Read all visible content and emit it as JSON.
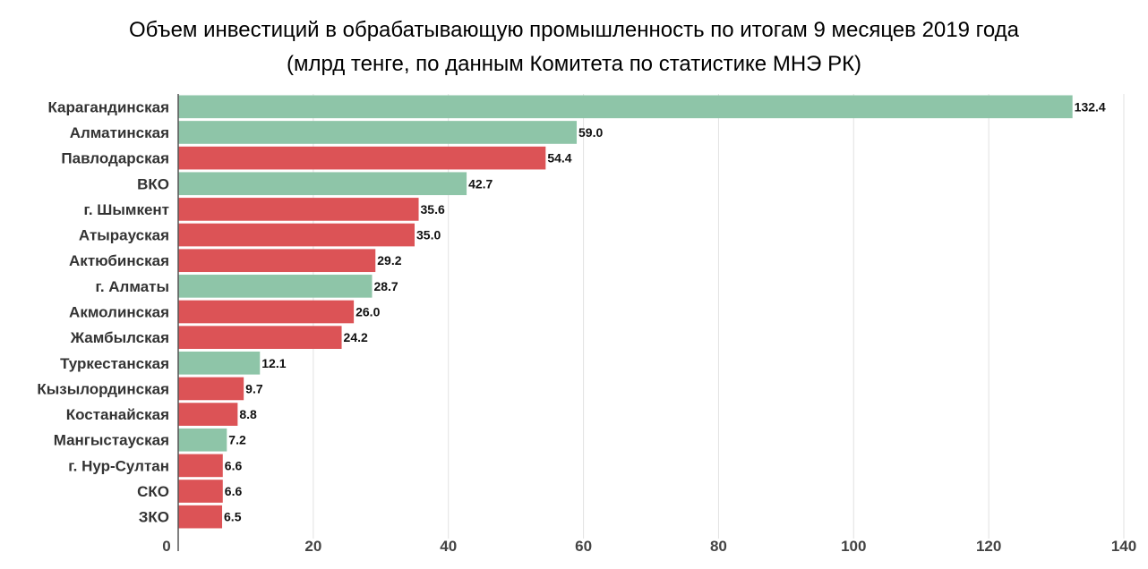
{
  "chart_data": {
    "type": "bar",
    "orientation": "horizontal",
    "title": "Объем инвестиций в обрабатывающую промышленность по итогам 9 месяцев 2019 года",
    "subtitle": "(млрд тенге, по данным Комитета по статистике МНЭ РК)",
    "xlim": [
      0,
      140
    ],
    "x_ticks": [
      "0",
      "20",
      "40",
      "60",
      "80",
      "100",
      "120",
      "140"
    ],
    "grid": true,
    "colors": {
      "green": "#8ec5a8",
      "red": "#dc5356"
    },
    "categories": [
      "Карагандинская",
      "Алматинская",
      "Павлодарская",
      "ВКО",
      "г. Шымкент",
      "Атырауская",
      "Актюбинская",
      "г. Алматы",
      "Акмолинская",
      "Жамбылская",
      "Туркестанская",
      "Кызылординская",
      "Костанайская",
      "Мангыстауская",
      "г. Нур-Султан",
      "СКО",
      "ЗКО"
    ],
    "values": [
      132.4,
      59.0,
      54.4,
      42.7,
      35.6,
      35.0,
      29.2,
      28.7,
      26.0,
      24.2,
      12.1,
      9.7,
      8.8,
      7.2,
      6.6,
      6.6,
      6.5
    ],
    "value_labels": [
      "132.4",
      "59.0",
      "54.4",
      "42.7",
      "35.6",
      "35.0",
      "29.2",
      "28.7",
      "26.0",
      "24.2",
      "12.1",
      "9.7",
      "8.8",
      "7.2",
      "6.6",
      "6.6",
      "6.5"
    ],
    "bar_colors": [
      "green",
      "green",
      "red",
      "green",
      "red",
      "red",
      "red",
      "green",
      "red",
      "red",
      "green",
      "red",
      "red",
      "green",
      "red",
      "red",
      "red"
    ]
  }
}
